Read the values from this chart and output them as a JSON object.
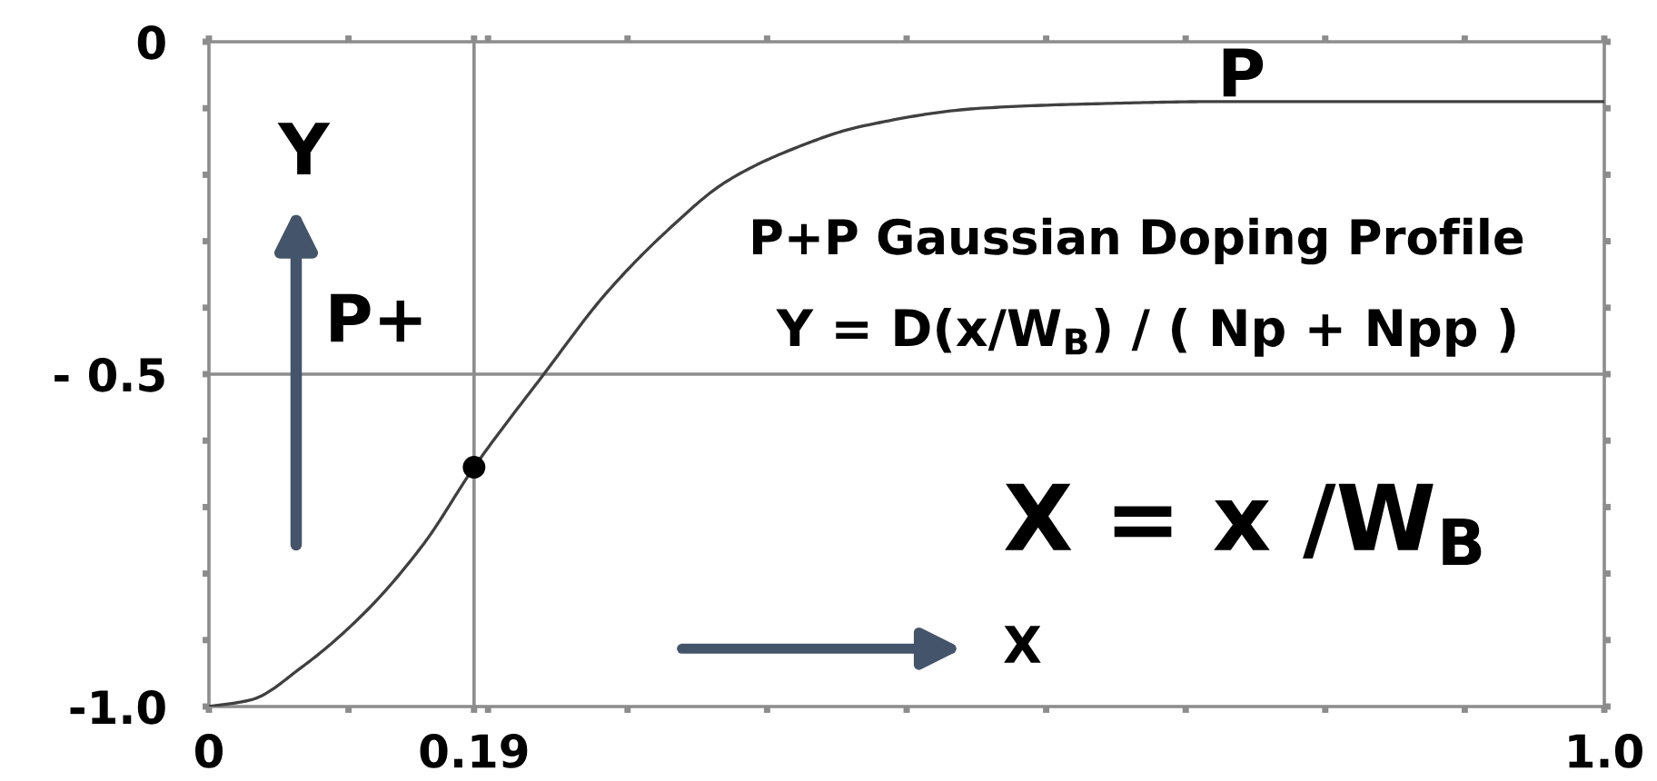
{
  "chart_data": {
    "type": "line",
    "series": [
      {
        "color": "#404040",
        "x": [
          0,
          0.03,
          0.067,
          0.111,
          0.154,
          0.19,
          0.24,
          0.284,
          0.328,
          0.371,
          0.42,
          0.466,
          0.553,
          0.64,
          0.72,
          1.0
        ],
        "values": [
          -1.0,
          -0.99,
          -0.94,
          -0.86,
          -0.755,
          -0.64,
          -0.5,
          -0.38,
          -0.285,
          -0.21,
          -0.16,
          -0.128,
          -0.1,
          -0.093,
          -0.09,
          -0.09
        ]
      },
      {
        "type": "scatter",
        "color": "#000000",
        "marker": "circle",
        "x": [
          0.19
        ],
        "values": [
          -0.64
        ]
      }
    ],
    "xlim": [
      0,
      1.0
    ],
    "ylim": [
      -1.0,
      0
    ],
    "xticks": [
      0,
      {
        "value": 0.1,
        "label": null
      },
      {
        "value": 0.19,
        "label": "0.19"
      },
      {
        "value": 0.2,
        "label": null
      },
      {
        "value": 0.3,
        "label": null
      },
      {
        "value": 0.4,
        "label": null
      },
      {
        "value": 0.5,
        "label": null
      },
      {
        "value": 0.6,
        "label": null
      },
      {
        "value": 0.7,
        "label": null
      },
      {
        "value": 0.8,
        "label": null
      },
      {
        "value": 0.9,
        "label": null
      },
      {
        "value": 1.0,
        "label": "1.0"
      }
    ],
    "yticks": [
      {
        "value": -1.0,
        "label": "-1.0"
      },
      {
        "value": -0.9,
        "label": null
      },
      {
        "value": -0.8,
        "label": null
      },
      {
        "value": -0.7,
        "label": null
      },
      {
        "value": -0.6,
        "label": null
      },
      {
        "value": -0.5,
        "label": "- 0.5"
      },
      {
        "value": -0.4,
        "label": null
      },
      {
        "value": -0.3,
        "label": null
      },
      {
        "value": -0.2,
        "label": null
      },
      {
        "value": -0.1,
        "label": null
      },
      0
    ],
    "ref_lines": [
      {
        "axis": "x",
        "value": 0.19,
        "color": "#8c8c8c"
      },
      {
        "axis": "y",
        "value": -0.5,
        "color": "#8c8c8c"
      }
    ],
    "annotations": [
      "P",
      "Y",
      "P+",
      "P+P Gaussian Doping Profile",
      "Y = D(x/W$_{B}$) / ( Np + Npp )",
      "X = x /W$_{B}$",
      "X"
    ]
  }
}
